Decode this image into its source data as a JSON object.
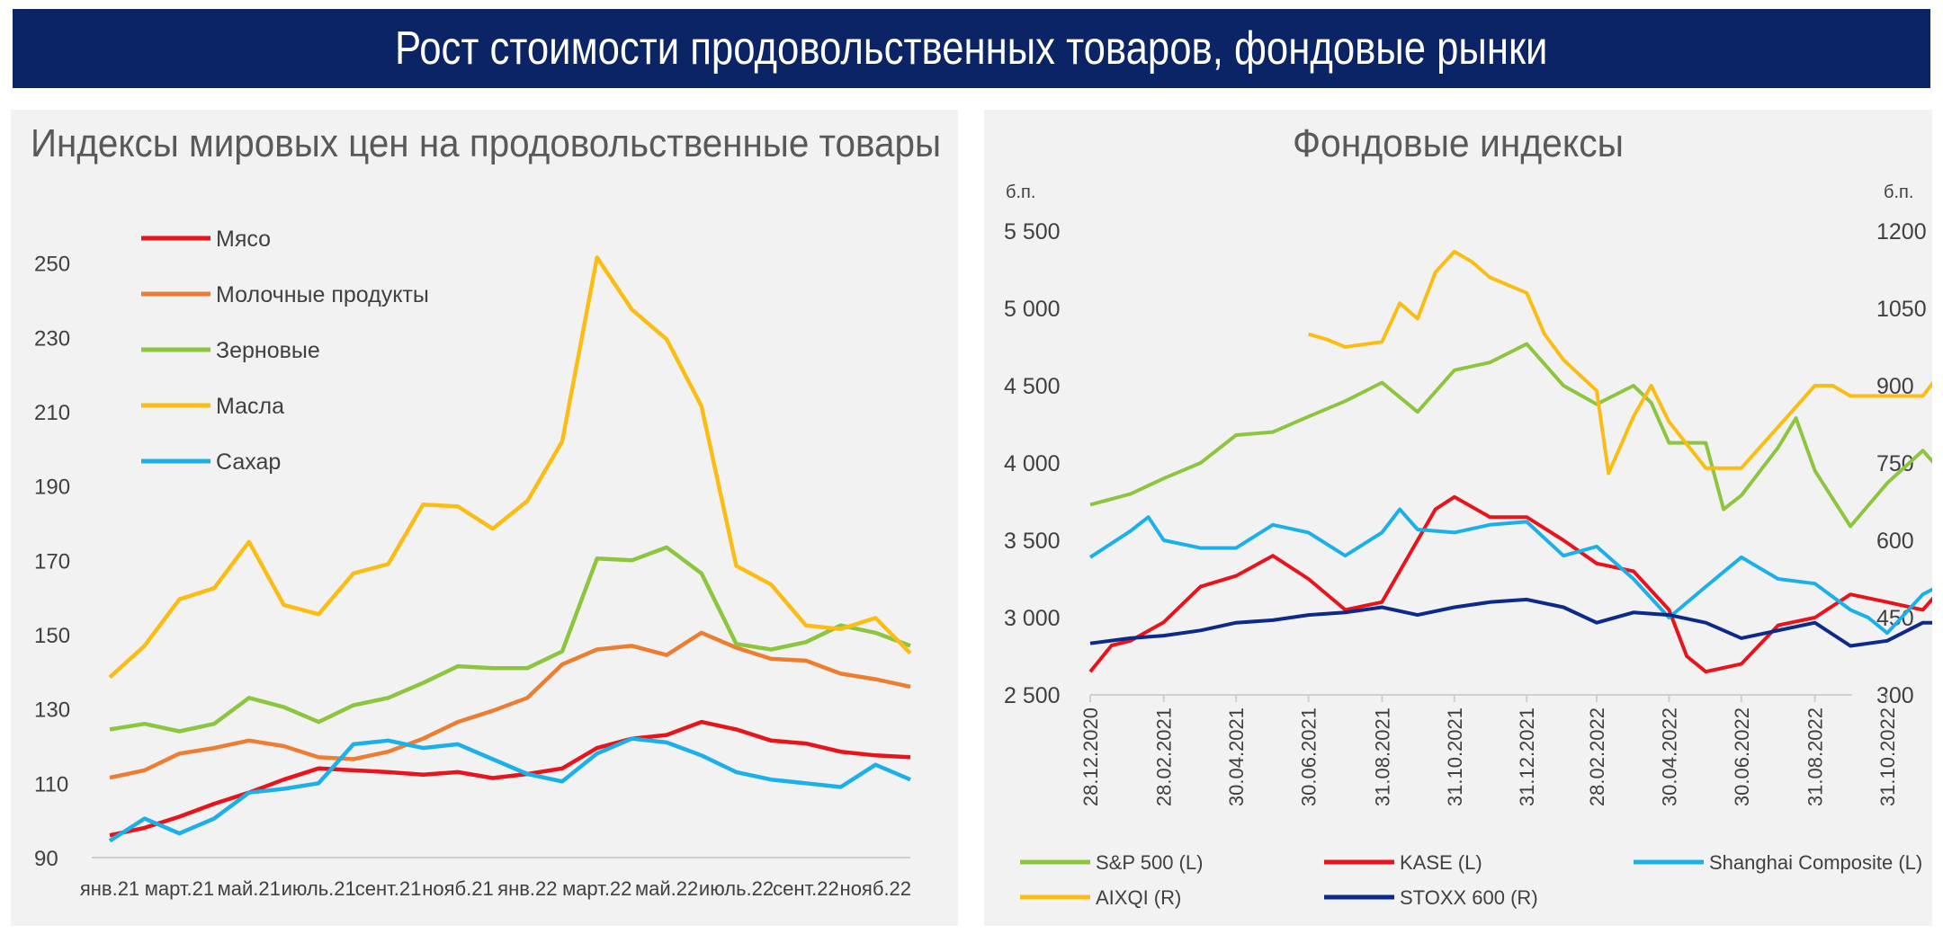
{
  "header": {
    "title": "Рост стоимости продовольственных товаров, фондовые рынки"
  },
  "colors": {
    "banner": "#0b2466",
    "meat": "#e8131b",
    "dairy": "#ed7d31",
    "cereals": "#8cc63f",
    "oils": "#fbbd13",
    "sugar": "#1cb0ea",
    "sp500": "#8cc63f",
    "kase": "#e8131b",
    "shanghai": "#1cb0ea",
    "aixqi": "#fbbd13",
    "stoxx": "#0b2a8a"
  },
  "chart_data": [
    {
      "type": "line",
      "title": "Индексы мировых цен на продовольственные товары",
      "xlabel": "",
      "ylabel": "",
      "ylim": [
        90,
        255
      ],
      "yticks": [
        "90",
        "110",
        "130",
        "150",
        "170",
        "190",
        "210",
        "230",
        "250"
      ],
      "xtick_labels": [
        "янв.21",
        "март.21",
        "май.21",
        "июль.21",
        "сент.21",
        "нояб.21",
        "янв.22",
        "март.22",
        "май.22",
        "июль.22",
        "сент.22",
        "нояб.22"
      ],
      "x": [
        "2021-01",
        "2021-02",
        "2021-03",
        "2021-04",
        "2021-05",
        "2021-06",
        "2021-07",
        "2021-08",
        "2021-09",
        "2021-10",
        "2021-11",
        "2021-12",
        "2022-01",
        "2022-02",
        "2022-03",
        "2022-04",
        "2022-05",
        "2022-06",
        "2022-07",
        "2022-08",
        "2022-09",
        "2022-10",
        "2022-11",
        "2022-12"
      ],
      "legend_position": "top-left",
      "series": [
        {
          "name": "Мясо",
          "color": "#e8131b",
          "values": [
            96,
            98,
            101,
            104.5,
            107.5,
            111,
            114,
            113.5,
            113,
            112.3,
            113,
            111.4,
            112.5,
            114,
            119.5,
            122,
            123,
            126.5,
            124.5,
            121.5,
            120.7,
            118.5,
            117.5,
            117
          ]
        },
        {
          "name": "Молочные продукты",
          "color": "#ed7d31",
          "values": [
            111.5,
            113.5,
            118,
            119.5,
            121.5,
            120,
            117,
            116.5,
            118.5,
            122,
            126.5,
            129.5,
            133,
            142,
            146,
            147,
            144.5,
            150.5,
            146.5,
            143.5,
            143,
            139.5,
            138,
            136
          ]
        },
        {
          "name": "Зерновые",
          "color": "#8cc63f",
          "values": [
            124.5,
            126,
            124,
            126,
            133,
            130.5,
            126.5,
            131,
            133,
            137,
            141.5,
            141,
            141,
            145.5,
            170.5,
            170,
            173.5,
            166.5,
            147.5,
            146,
            148,
            152.5,
            150.5,
            147
          ]
        },
        {
          "name": "Масла",
          "color": "#fbbd13",
          "values": [
            138.5,
            147,
            159.5,
            162.5,
            175,
            158,
            155.5,
            166.5,
            169,
            185,
            184.5,
            178.5,
            186,
            202,
            251.5,
            237.5,
            229.5,
            211.5,
            168.5,
            163.5,
            152.5,
            151.5,
            154.5,
            145
          ]
        },
        {
          "name": "Сахар",
          "color": "#1cb0ea",
          "values": [
            94.5,
            100.5,
            96.5,
            100.5,
            107.5,
            108.5,
            110,
            120.5,
            121.5,
            119.5,
            120.5,
            116.5,
            112.5,
            110.5,
            118,
            122,
            121,
            117.5,
            113,
            111,
            110,
            109,
            115,
            111
          ]
        }
      ]
    },
    {
      "type": "line",
      "title": "Фондовые индексы",
      "y_unit_left": "б.п.",
      "y_unit_right": "б.п.",
      "ylim_left": [
        2500,
        5500
      ],
      "ylim_right": [
        300,
        1200
      ],
      "yticks_left": [
        "2 500",
        "3 000",
        "3 500",
        "4 000",
        "4 500",
        "5 000",
        "5 500"
      ],
      "yticks_right": [
        "300",
        "450",
        "600",
        "750",
        "900",
        "1050",
        "1200"
      ],
      "xtick_labels": [
        "28.12.2020",
        "28.02.2021",
        "30.04.2021",
        "30.06.2021",
        "31.08.2021",
        "31.10.2021",
        "31.12.2021",
        "28.02.2022",
        "30.04.2022",
        "30.06.2022",
        "31.08.2022",
        "31.10.2022"
      ],
      "legend_position": "bottom",
      "series": [
        {
          "name": "S&P 500 (L)",
          "axis": "left",
          "color": "#8cc63f",
          "points": [
            [
              "2020-12-28",
              3730
            ],
            [
              "2021-01-31",
              3800
            ],
            [
              "2021-02-28",
              3900
            ],
            [
              "2021-03-31",
              4000
            ],
            [
              "2021-04-30",
              4180
            ],
            [
              "2021-05-31",
              4200
            ],
            [
              "2021-06-30",
              4300
            ],
            [
              "2021-07-31",
              4400
            ],
            [
              "2021-08-31",
              4520
            ],
            [
              "2021-09-30",
              4330
            ],
            [
              "2021-10-31",
              4600
            ],
            [
              "2021-11-30",
              4650
            ],
            [
              "2021-12-31",
              4770
            ],
            [
              "2022-01-31",
              4500
            ],
            [
              "2022-02-28",
              4380
            ],
            [
              "2022-03-31",
              4500
            ],
            [
              "2022-04-15",
              4390
            ],
            [
              "2022-04-30",
              4130
            ],
            [
              "2022-05-31",
              4130
            ],
            [
              "2022-06-15",
              3700
            ],
            [
              "2022-06-30",
              3790
            ],
            [
              "2022-07-31",
              4100
            ],
            [
              "2022-08-15",
              4290
            ],
            [
              "2022-08-31",
              3950
            ],
            [
              "2022-09-30",
              3590
            ],
            [
              "2022-10-31",
              3870
            ],
            [
              "2022-11-30",
              4080
            ],
            [
              "2022-12-15",
              3950
            ]
          ]
        },
        {
          "name": "KASE (L)",
          "axis": "left",
          "color": "#e8131b",
          "points": [
            [
              "2020-12-28",
              2650
            ],
            [
              "2021-01-15",
              2820
            ],
            [
              "2021-01-31",
              2850
            ],
            [
              "2021-02-28",
              2970
            ],
            [
              "2021-03-31",
              3200
            ],
            [
              "2021-04-30",
              3270
            ],
            [
              "2021-05-31",
              3400
            ],
            [
              "2021-06-30",
              3250
            ],
            [
              "2021-07-31",
              3050
            ],
            [
              "2021-08-31",
              3100
            ],
            [
              "2021-09-30",
              3500
            ],
            [
              "2021-10-15",
              3700
            ],
            [
              "2021-10-31",
              3780
            ],
            [
              "2021-11-30",
              3650
            ],
            [
              "2021-12-31",
              3650
            ],
            [
              "2022-01-31",
              3500
            ],
            [
              "2022-02-28",
              3350
            ],
            [
              "2022-03-31",
              3300
            ],
            [
              "2022-04-30",
              3050
            ],
            [
              "2022-05-15",
              2750
            ],
            [
              "2022-05-31",
              2650
            ],
            [
              "2022-06-30",
              2700
            ],
            [
              "2022-07-31",
              2950
            ],
            [
              "2022-08-31",
              3000
            ],
            [
              "2022-09-30",
              3150
            ],
            [
              "2022-10-31",
              3100
            ],
            [
              "2022-11-30",
              3050
            ],
            [
              "2022-12-15",
              3180
            ]
          ]
        },
        {
          "name": "Shanghai Composite (L)",
          "axis": "left",
          "color": "#1cb0ea",
          "points": [
            [
              "2020-12-28",
              3390
            ],
            [
              "2021-01-31",
              3560
            ],
            [
              "2021-02-15",
              3650
            ],
            [
              "2021-02-28",
              3500
            ],
            [
              "2021-03-31",
              3450
            ],
            [
              "2021-04-30",
              3450
            ],
            [
              "2021-05-31",
              3600
            ],
            [
              "2021-06-30",
              3550
            ],
            [
              "2021-07-31",
              3400
            ],
            [
              "2021-08-31",
              3550
            ],
            [
              "2021-09-15",
              3700
            ],
            [
              "2021-09-30",
              3570
            ],
            [
              "2021-10-31",
              3550
            ],
            [
              "2021-11-30",
              3600
            ],
            [
              "2021-12-31",
              3620
            ],
            [
              "2022-01-31",
              3400
            ],
            [
              "2022-02-28",
              3460
            ],
            [
              "2022-03-31",
              3250
            ],
            [
              "2022-04-30",
              3000
            ],
            [
              "2022-05-31",
              3200
            ],
            [
              "2022-06-30",
              3390
            ],
            [
              "2022-07-31",
              3250
            ],
            [
              "2022-08-31",
              3220
            ],
            [
              "2022-09-30",
              3050
            ],
            [
              "2022-10-15",
              3000
            ],
            [
              "2022-10-31",
              2900
            ],
            [
              "2022-11-30",
              3150
            ],
            [
              "2022-12-15",
              3210
            ]
          ]
        },
        {
          "name": "AIXQI (R)",
          "axis": "right",
          "color": "#fbbd13",
          "points": [
            [
              "2021-06-30",
              1000
            ],
            [
              "2021-07-15",
              990
            ],
            [
              "2021-07-31",
              975
            ],
            [
              "2021-08-31",
              985
            ],
            [
              "2021-09-15",
              1060
            ],
            [
              "2021-09-30",
              1030
            ],
            [
              "2021-10-15",
              1120
            ],
            [
              "2021-10-31",
              1160
            ],
            [
              "2021-11-15",
              1140
            ],
            [
              "2021-11-30",
              1110
            ],
            [
              "2021-12-31",
              1080
            ],
            [
              "2022-01-15",
              1000
            ],
            [
              "2022-01-31",
              950
            ],
            [
              "2022-02-28",
              890
            ],
            [
              "2022-03-10",
              730
            ],
            [
              "2022-03-31",
              840
            ],
            [
              "2022-04-15",
              900
            ],
            [
              "2022-04-30",
              830
            ],
            [
              "2022-05-31",
              740
            ],
            [
              "2022-06-30",
              740
            ],
            [
              "2022-07-31",
              820
            ],
            [
              "2022-08-31",
              900
            ],
            [
              "2022-09-15",
              900
            ],
            [
              "2022-09-30",
              880
            ],
            [
              "2022-10-31",
              880
            ],
            [
              "2022-11-30",
              880
            ],
            [
              "2022-12-15",
              925
            ]
          ]
        },
        {
          "name": "STOXX 600 (R)",
          "axis": "right",
          "color": "#0b2a8a",
          "points": [
            [
              "2020-12-28",
              400
            ],
            [
              "2021-01-31",
              410
            ],
            [
              "2021-02-28",
              415
            ],
            [
              "2021-03-31",
              425
            ],
            [
              "2021-04-30",
              440
            ],
            [
              "2021-05-31",
              445
            ],
            [
              "2021-06-30",
              455
            ],
            [
              "2021-07-31",
              460
            ],
            [
              "2021-08-31",
              470
            ],
            [
              "2021-09-30",
              455
            ],
            [
              "2021-10-31",
              470
            ],
            [
              "2021-11-30",
              480
            ],
            [
              "2021-12-31",
              485
            ],
            [
              "2022-01-31",
              470
            ],
            [
              "2022-02-28",
              440
            ],
            [
              "2022-03-31",
              460
            ],
            [
              "2022-04-30",
              455
            ],
            [
              "2022-05-31",
              440
            ],
            [
              "2022-06-30",
              410
            ],
            [
              "2022-07-31",
              425
            ],
            [
              "2022-08-31",
              440
            ],
            [
              "2022-09-30",
              395
            ],
            [
              "2022-10-31",
              405
            ],
            [
              "2022-11-30",
              440
            ],
            [
              "2022-12-15",
              440
            ]
          ]
        }
      ]
    }
  ]
}
